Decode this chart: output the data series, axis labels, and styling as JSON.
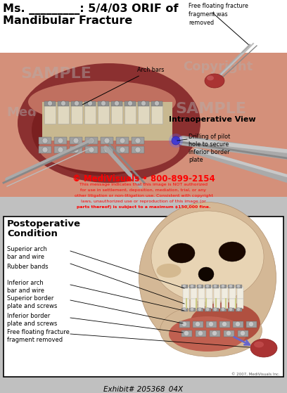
{
  "title_line1": "Ms. _________: 5/4/03 ORIF of",
  "title_line2": "Mandibular Fracture",
  "title_fontsize": 11.5,
  "bg_color": "#c0c0c0",
  "top_right_label": "Free floating fracture\nfragment was\nremoved",
  "intraop_label": "Intraoperative View",
  "arch_bars_label": "Arch bars",
  "drilling_label": "Drilling of pilot\nhole to secure\ninferior border\nplate",
  "postop_title_line1": "Postoperative",
  "postop_title_line2": "Condition",
  "labels": [
    "Superior arch\nbar and wire",
    "Rubber bands",
    "Inferior arch\nbar and wire",
    "Superior border\nplate and screws",
    "Inferior border\nplate and screws",
    "Free floating fracture\nfragment removed"
  ],
  "copyright_text": "© MediVisuals • 800-899-2154",
  "watermark_line1": "This message indicates that this image is NOT authorized",
  "watermark_line2": "for use in settlement, deposition, mediation, trial, or any",
  "watermark_line3": "other litigation or non-litigation use. Consistent with copyright",
  "watermark_line4": "laws, unauthorized use or reproduction of this image (or",
  "watermark_line5": "parts thereof) is subject to a maximum $150,000 fine.",
  "exhibit_text": "Exhibit# 205368_04X",
  "copyright_small": "© 2007, MediVisuals Inc.",
  "label_fontsize": 6.0,
  "small_fontsize": 5.8,
  "intraop_bg": "#d4907a",
  "mouth_dark": "#8b3030",
  "mouth_mid": "#b05050",
  "tissue_color": "#c07060",
  "teeth_color": "#e0d8c0",
  "metal_color": "#909090",
  "skull_color": "#d4b896",
  "skull_light": "#e8d4b4",
  "bone_dark": "#b09070",
  "fragment_color": "#aa3333",
  "arrow_color": "#6666cc",
  "plate_color": "#a0a0a0",
  "watermark_ghost": "#b0b0b0"
}
